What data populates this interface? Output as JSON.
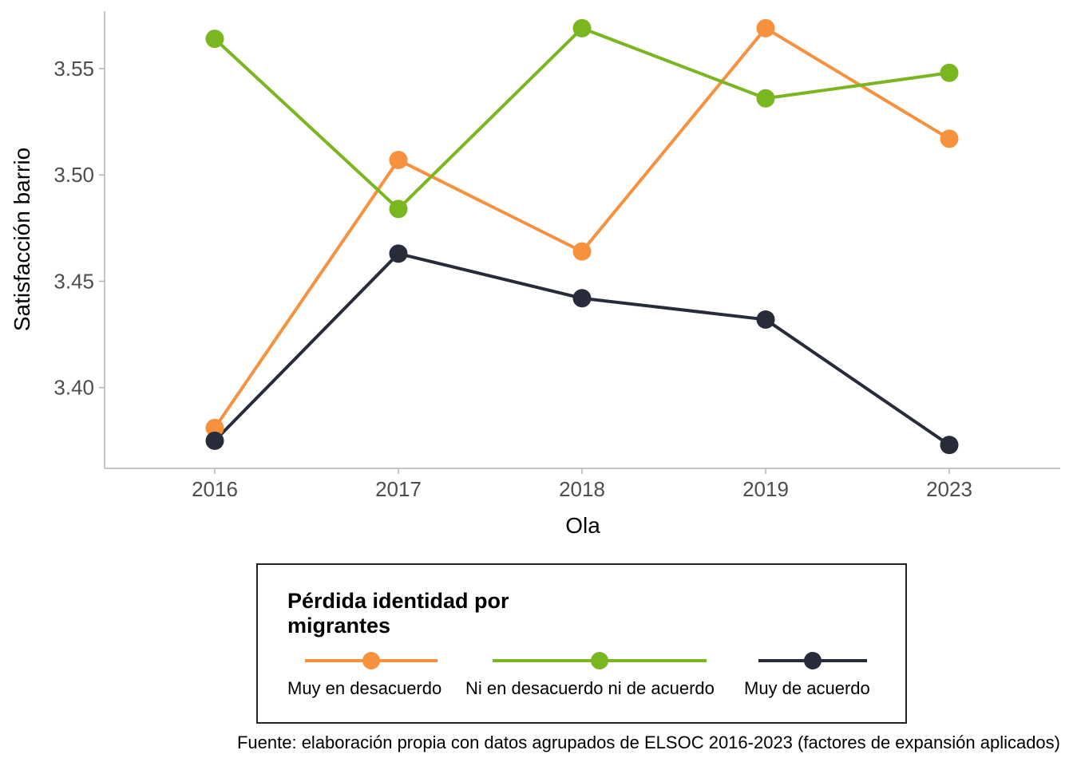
{
  "chart_data": {
    "type": "line",
    "title": "",
    "xlabel": "Ola",
    "ylabel": "Satisfacción barrio",
    "categories": [
      "2016",
      "2017",
      "2018",
      "2019",
      "2023"
    ],
    "yticks": [
      "3.40",
      "3.45",
      "3.50",
      "3.55"
    ],
    "ytick_values": [
      3.4,
      3.45,
      3.5,
      3.55
    ],
    "ylim": [
      3.362,
      3.577
    ],
    "grid": false,
    "legend_title": "Pérdida identidad por migrantes",
    "legend_position": "bottom",
    "series": [
      {
        "name": "Muy en desacuerdo",
        "color": "#f7913d",
        "values": [
          3.381,
          3.507,
          3.464,
          3.569,
          3.517
        ]
      },
      {
        "name": "Ni en desacuerdo ni de acuerdo",
        "color": "#79b61f",
        "values": [
          3.564,
          3.484,
          3.569,
          3.536,
          3.548
        ]
      },
      {
        "name": "Muy de acuerdo",
        "color": "#272b3a",
        "values": [
          3.375,
          3.463,
          3.442,
          3.432,
          3.373
        ]
      }
    ]
  },
  "caption": "Fuente: elaboración propia con datos agrupados de ELSOC 2016-2023 (factores de expansión aplicados)"
}
